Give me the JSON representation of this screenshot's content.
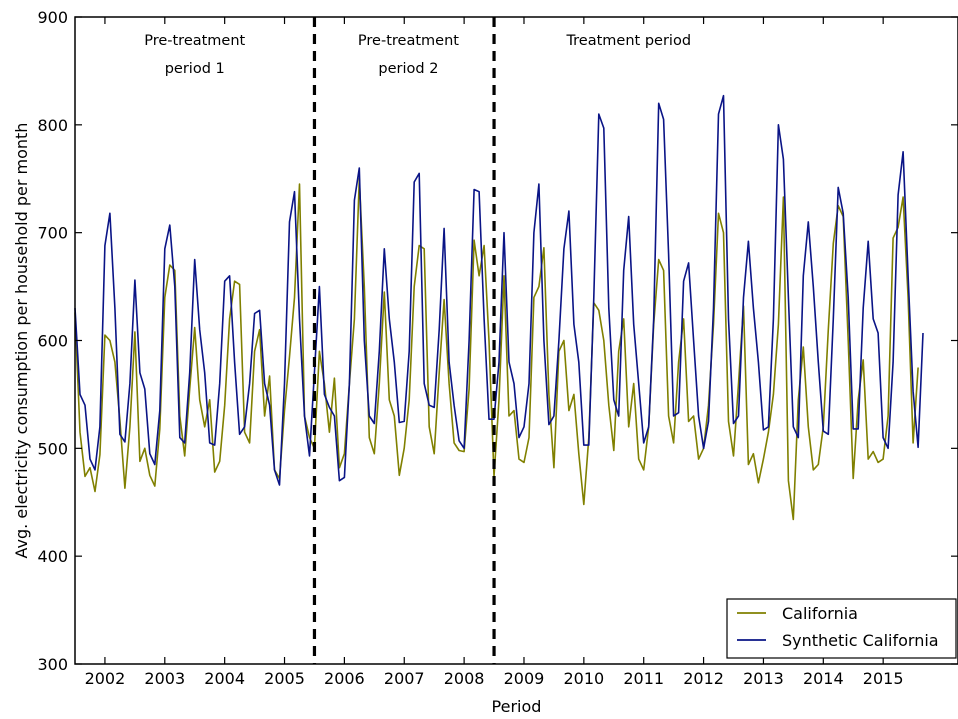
{
  "chart_data": {
    "type": "line",
    "xlabel": "Period",
    "ylabel": "Avg. electricity consumption per household per month",
    "xlim": [
      2001.5,
      2016.25
    ],
    "ylim": [
      300,
      900
    ],
    "xticks": [
      2002,
      2003,
      2004,
      2005,
      2006,
      2007,
      2008,
      2009,
      2010,
      2011,
      2012,
      2013,
      2014,
      2015
    ],
    "yticks": [
      300,
      400,
      500,
      600,
      700,
      800,
      900
    ],
    "grid": false,
    "legend_position": "lower-right",
    "period_dividers": [
      2005.5,
      2008.5
    ],
    "period_labels": [
      {
        "lines": [
          "Pre-treatment",
          "period 1"
        ],
        "x": 2003.5
      },
      {
        "lines": [
          "Pre-treatment",
          "period 2"
        ],
        "x": 2007.07
      },
      {
        "lines": [
          "Treatment period"
        ],
        "x": 2010.75
      }
    ],
    "x_start": 2001.5,
    "x_step": 0.08333,
    "series": [
      {
        "name": "California",
        "color": "#808000",
        "values": [
          626,
          515,
          474,
          482,
          460,
          494,
          605,
          600,
          580,
          526,
          463,
          520,
          608,
          488,
          500,
          475,
          465,
          518,
          640,
          670,
          665,
          530,
          493,
          555,
          612,
          545,
          520,
          545,
          478,
          488,
          540,
          620,
          655,
          652,
          515,
          505,
          590,
          610,
          530,
          567,
          480,
          472,
          535,
          585,
          640,
          745,
          530,
          510,
          500,
          590,
          560,
          515,
          565,
          482,
          495,
          560,
          620,
          750,
          650,
          510,
          495,
          560,
          645,
          545,
          530,
          475,
          500,
          545,
          650,
          688,
          685,
          520,
          495,
          570,
          638,
          560,
          505,
          498,
          497,
          555,
          693,
          660,
          688,
          600,
          474,
          545,
          660,
          530,
          535,
          490,
          487,
          510,
          640,
          650,
          686,
          550,
          482,
          590,
          600,
          535,
          550,
          495,
          448,
          510,
          635,
          628,
          600,
          540,
          498,
          590,
          620,
          520,
          560,
          490,
          480,
          520,
          615,
          675,
          665,
          530,
          505,
          580,
          620,
          525,
          530,
          490,
          500,
          540,
          615,
          718,
          700,
          525,
          493,
          560,
          632,
          485,
          495,
          468,
          490,
          515,
          550,
          615,
          733,
          470,
          434,
          545,
          594,
          520,
          480,
          485,
          520,
          610,
          690,
          725,
          715,
          600,
          472,
          545,
          582,
          490,
          497,
          487,
          490,
          530,
          695,
          705,
          733,
          640,
          505,
          575
        ]
      },
      {
        "name": "Synthetic California",
        "color": "#0a1486",
        "values": [
          630,
          550,
          540,
          490,
          480,
          520,
          688,
          718,
          630,
          513,
          506,
          560,
          656,
          570,
          555,
          495,
          485,
          535,
          685,
          707,
          650,
          510,
          505,
          570,
          675,
          610,
          570,
          505,
          503,
          560,
          655,
          660,
          580,
          513,
          520,
          560,
          625,
          628,
          560,
          540,
          480,
          466,
          560,
          710,
          738,
          620,
          530,
          493,
          570,
          650,
          550,
          538,
          530,
          470,
          473,
          560,
          730,
          760,
          600,
          530,
          523,
          590,
          685,
          620,
          580,
          524,
          525,
          590,
          747,
          755,
          560,
          540,
          538,
          610,
          704,
          580,
          540,
          507,
          500,
          600,
          740,
          738,
          620,
          527,
          527,
          580,
          700,
          580,
          560,
          510,
          520,
          560,
          700,
          745,
          600,
          522,
          530,
          600,
          685,
          720,
          615,
          580,
          503,
          503,
          640,
          810,
          797,
          630,
          545,
          530,
          665,
          715,
          615,
          560,
          505,
          520,
          620,
          820,
          805,
          680,
          530,
          533,
          655,
          672,
          600,
          530,
          500,
          525,
          630,
          810,
          827,
          620,
          523,
          530,
          640,
          692,
          630,
          580,
          517,
          520,
          620,
          800,
          768,
          640,
          520,
          510,
          660,
          710,
          650,
          580,
          516,
          513,
          620,
          742,
          718,
          640,
          518,
          518,
          630,
          692,
          620,
          607,
          510,
          500,
          580,
          735,
          775,
          660,
          553,
          501,
          607
        ]
      }
    ]
  }
}
